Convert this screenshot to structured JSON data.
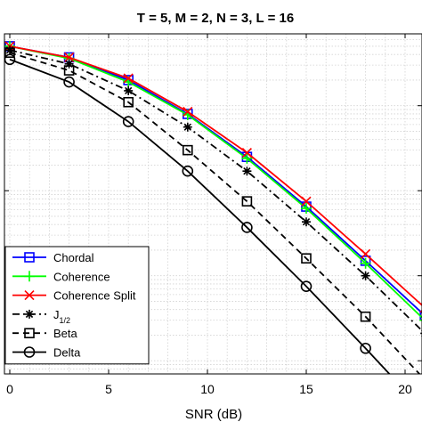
{
  "chart_data": {
    "type": "line",
    "title": "T = 5, M = 2, N = 3, L = 16",
    "xlabel": "SNR (dB)",
    "ylabel": "",
    "xlim": [
      0,
      20.6
    ],
    "yscale": "log",
    "ylim": [
      7e-05,
      0.7
    ],
    "xticks": [
      0,
      5,
      10,
      15,
      20
    ],
    "grid": true,
    "legend_position": "bottom-left",
    "x": [
      0,
      3,
      6,
      9,
      12,
      15,
      18,
      21
    ],
    "series": [
      {
        "name": "Chordal",
        "color": "#0000ff",
        "linestyle": "solid",
        "marker": "square",
        "values": [
          0.5,
          0.37,
          0.2,
          0.08,
          0.025,
          0.0065,
          0.0015,
          0.00034
        ]
      },
      {
        "name": "Coherence",
        "color": "#00ff00",
        "linestyle": "solid",
        "marker": "plus",
        "values": [
          0.5,
          0.36,
          0.19,
          0.078,
          0.024,
          0.0062,
          0.0014,
          0.0003
        ]
      },
      {
        "name": "Coherence Split",
        "color": "#ff0000",
        "linestyle": "solid",
        "marker": "x",
        "values": [
          0.5,
          0.37,
          0.21,
          0.085,
          0.028,
          0.0075,
          0.0018,
          0.00042
        ]
      },
      {
        "name": "J_{1/2}",
        "color": "#000000",
        "linestyle": "dashdot",
        "marker": "star",
        "values": [
          0.45,
          0.31,
          0.15,
          0.056,
          0.017,
          0.0043,
          0.001,
          0.00021
        ]
      },
      {
        "name": "Beta",
        "color": "#000000",
        "linestyle": "dashed",
        "marker": "square",
        "values": [
          0.42,
          0.26,
          0.11,
          0.03,
          0.0075,
          0.0016,
          0.00033,
          6e-05
        ]
      },
      {
        "name": "Delta",
        "color": "#000000",
        "linestyle": "solid",
        "marker": "circle",
        "values": [
          0.35,
          0.19,
          0.065,
          0.017,
          0.0037,
          0.00075,
          0.00014,
          2.5e-05
        ]
      }
    ]
  }
}
